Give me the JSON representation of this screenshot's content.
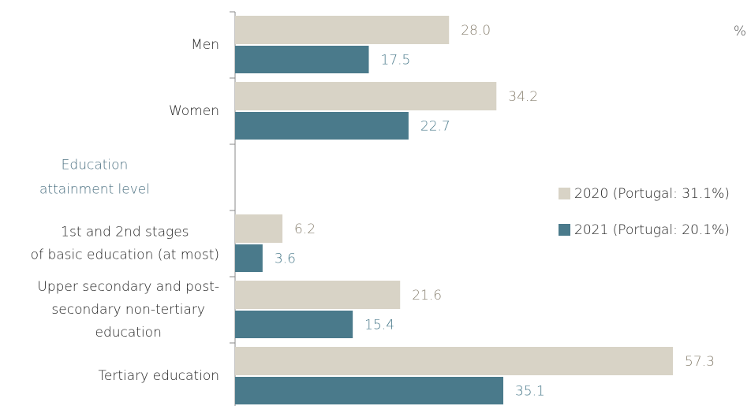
{
  "chart_data": {
    "type": "hbar",
    "unit": "%",
    "categories": [
      "Men",
      "Women",
      "Education\nattainment level",
      "1st and 2nd stages\nof basic education (at most)",
      "Upper secondary and post-\nsecondary non-tertiary\neducation",
      "Tertiary education"
    ],
    "group_headers": [
      2
    ],
    "series": [
      {
        "name": "2020 (Portugal: 31.1%)",
        "color": "#d8d3c6",
        "label_color": "#8a8272",
        "values": [
          28.0,
          34.2,
          null,
          6.2,
          21.6,
          57.3
        ],
        "value_labels": [
          "28.0",
          "34.2",
          null,
          "6.2",
          "21.6",
          "57.3"
        ]
      },
      {
        "name": "2021 (Portugal: 20.1%)",
        "color": "#4a7a8b",
        "label_color": "#4a7a8b",
        "values": [
          17.5,
          22.7,
          null,
          3.6,
          15.4,
          35.1
        ],
        "value_labels": [
          "17.5",
          "22.7",
          null,
          "3.6",
          "15.4",
          "35.1"
        ]
      }
    ],
    "xlim": [
      0,
      67
    ],
    "legend": "right"
  }
}
